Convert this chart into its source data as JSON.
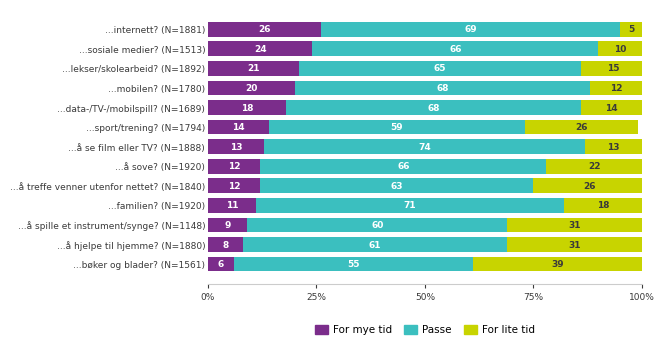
{
  "categories": [
    "...internett? (N=1881)",
    "...sosiale medier? (N=1513)",
    "...lekser/skolearbeid? (N=1892)",
    "...mobilen? (N=1780)",
    "...data-/TV-/mobilspill? (N=1689)",
    "...sport/trening? (N=1794)",
    "...å se film eller TV? (N=1888)",
    "...å sove? (N=1920)",
    "...å treffe venner utenfor nettet? (N=1840)",
    "...familien? (N=1920)",
    "...å spille et instrument/synge? (N=1148)",
    "...å hjelpe til hjemme? (N=1880)",
    "...bøker og blader? (N=1561)"
  ],
  "for_mye": [
    26,
    24,
    21,
    20,
    18,
    14,
    13,
    12,
    12,
    11,
    9,
    8,
    6
  ],
  "passe": [
    69,
    66,
    65,
    68,
    68,
    59,
    74,
    66,
    63,
    71,
    60,
    61,
    55
  ],
  "for_lite": [
    5,
    10,
    15,
    12,
    14,
    26,
    13,
    22,
    26,
    18,
    31,
    31,
    39
  ],
  "color_for_mye": "#7b2d8b",
  "color_passe": "#3bbfbf",
  "color_for_lite": "#c8d400",
  "legend_labels": [
    "For mye tid",
    "Passe",
    "For lite tid"
  ],
  "bar_height": 0.75,
  "text_color_dark": "#3a3a3a",
  "label_fontsize": 6.5,
  "value_fontsize": 6.5,
  "background_color": "#ffffff"
}
